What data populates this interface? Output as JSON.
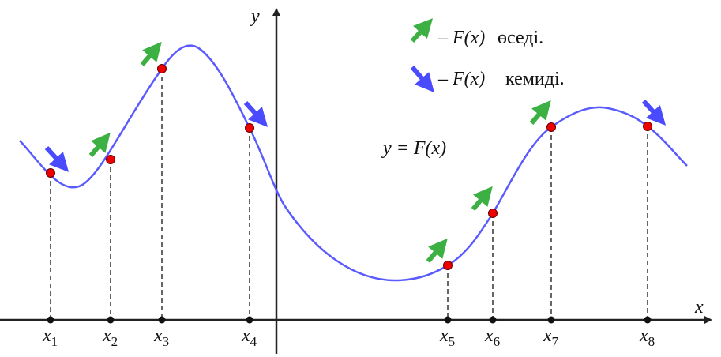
{
  "axes": {
    "x": "x",
    "y": "y"
  },
  "points": [
    {
      "symbol": "x",
      "index": "1"
    },
    {
      "symbol": "x",
      "index": "2"
    },
    {
      "symbol": "x",
      "index": "3"
    },
    {
      "symbol": "x",
      "index": "4"
    },
    {
      "symbol": "x",
      "index": "5"
    },
    {
      "symbol": "x",
      "index": "6"
    },
    {
      "symbol": "x",
      "index": "7"
    },
    {
      "symbol": "x",
      "index": "8"
    }
  ],
  "curve_label": "y = F(x)",
  "legend": [
    {
      "symbol": "– F(x)",
      "caption": "өседі."
    },
    {
      "symbol": "– F(x)",
      "caption": "кемиді."
    }
  ]
}
